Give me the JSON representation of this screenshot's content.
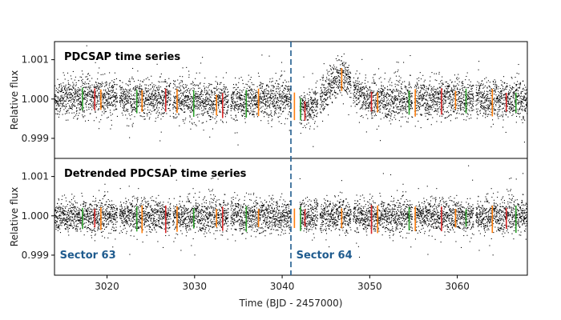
{
  "chart_data": {
    "type": "scatter",
    "xlabel": "Time (BJD - 2457000)",
    "xlim": [
      3014,
      3068
    ],
    "xticks": [
      3020,
      3030,
      3040,
      3050,
      3060
    ],
    "xtick_labels": [
      "3020",
      "3030",
      "3040",
      "3050",
      "3060"
    ],
    "gap_x": [
      3041.0,
      3042.0
    ],
    "sector_boundary_x": 3041.0,
    "colors": {
      "points": "#000000",
      "boundary": "#1f5b8e",
      "sector_text": "#1f5b8e",
      "transit_palette": [
        "#2ca02c",
        "#d62728",
        "#ff7f0e"
      ]
    },
    "panels": [
      {
        "title": "PDCSAP time series",
        "ylabel": "Relative flux",
        "ylim": [
          0.99849,
          1.00146
        ],
        "yticks": [
          0.999,
          1.0,
          1.001
        ],
        "ytick_labels": [
          "0.999",
          "1.000",
          "1.001"
        ],
        "noise_sigma": 0.00024,
        "trend": true
      },
      {
        "title": "Detrended PDCSAP time series",
        "ylabel": "Relative flux",
        "ylim": [
          0.99849,
          1.00146
        ],
        "yticks": [
          0.999,
          1.0,
          1.001
        ],
        "ytick_labels": [
          "0.999",
          "1.000",
          "1.001"
        ],
        "noise_sigma": 0.00021,
        "trend": false,
        "sector_labels": [
          {
            "text": "Sector 63",
            "x": 3014.6,
            "y": 0.99892
          },
          {
            "text": "Sector 64",
            "x": 3041.6,
            "y": 0.99892
          }
        ]
      }
    ],
    "transits": [
      {
        "t": 3017.2,
        "color": "#2ca02c"
      },
      {
        "t": 3018.6,
        "color": "#d62728"
      },
      {
        "t": 3019.3,
        "color": "#ff7f0e"
      },
      {
        "t": 3023.4,
        "color": "#2ca02c"
      },
      {
        "t": 3024.0,
        "color": "#ff7f0e"
      },
      {
        "t": 3026.7,
        "color": "#d62728"
      },
      {
        "t": 3028.0,
        "color": "#ff7f0e"
      },
      {
        "t": 3029.9,
        "color": "#2ca02c"
      },
      {
        "t": 3032.5,
        "color": "#ff7f0e"
      },
      {
        "t": 3033.2,
        "color": "#d62728"
      },
      {
        "t": 3035.9,
        "color": "#2ca02c"
      },
      {
        "t": 3037.3,
        "color": "#ff7f0e"
      },
      {
        "t": 3041.4,
        "color": "#ff7f0e"
      },
      {
        "t": 3042.1,
        "color": "#2ca02c"
      },
      {
        "t": 3042.6,
        "color": "#d62728"
      },
      {
        "t": 3046.8,
        "color": "#ff7f0e"
      },
      {
        "t": 3050.2,
        "color": "#d62728"
      },
      {
        "t": 3050.9,
        "color": "#ff7f0e"
      },
      {
        "t": 3054.5,
        "color": "#2ca02c"
      },
      {
        "t": 3055.2,
        "color": "#ff7f0e"
      },
      {
        "t": 3058.2,
        "color": "#d62728"
      },
      {
        "t": 3059.8,
        "color": "#ff7f0e"
      },
      {
        "t": 3061.0,
        "color": "#2ca02c"
      },
      {
        "t": 3064.0,
        "color": "#ff7f0e"
      },
      {
        "t": 3065.6,
        "color": "#d62728"
      },
      {
        "t": 3066.7,
        "color": "#2ca02c"
      }
    ]
  }
}
